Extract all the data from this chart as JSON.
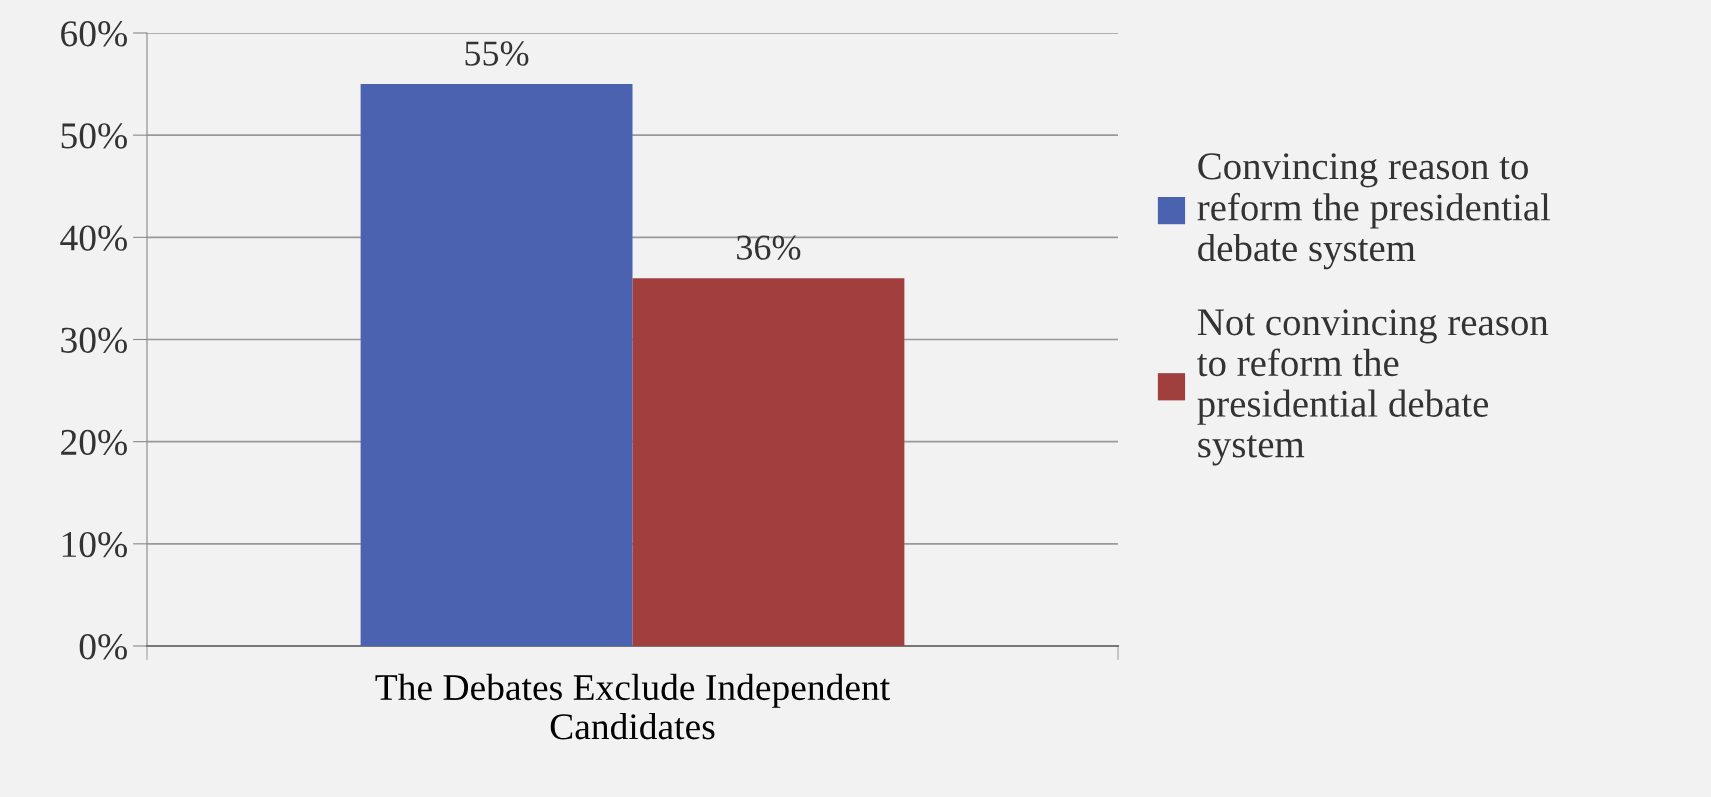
{
  "chart_data": {
    "type": "bar",
    "categories": [
      "The Debates Exclude Independent\nCandidates"
    ],
    "series": [
      {
        "name": "Convincing reason to\nreform the presidential\ndebate system",
        "color": "#4a62b0",
        "values": [
          55
        ],
        "value_labels": [
          "55%"
        ]
      },
      {
        "name": "Not convincing reason\nto reform the\npresidential debate\nsystem",
        "color": "#a13f3e",
        "values": [
          36
        ],
        "value_labels": [
          "36%"
        ]
      }
    ],
    "ylim": [
      0,
      60
    ],
    "yticks": [
      {
        "value": 0,
        "label": "0%"
      },
      {
        "value": 10,
        "label": "10%"
      },
      {
        "value": 20,
        "label": "20%"
      },
      {
        "value": 30,
        "label": "30%"
      },
      {
        "value": 40,
        "label": "40%"
      },
      {
        "value": 50,
        "label": "50%"
      },
      {
        "value": 60,
        "label": "60%"
      }
    ],
    "grid": "y",
    "legend": "right"
  }
}
